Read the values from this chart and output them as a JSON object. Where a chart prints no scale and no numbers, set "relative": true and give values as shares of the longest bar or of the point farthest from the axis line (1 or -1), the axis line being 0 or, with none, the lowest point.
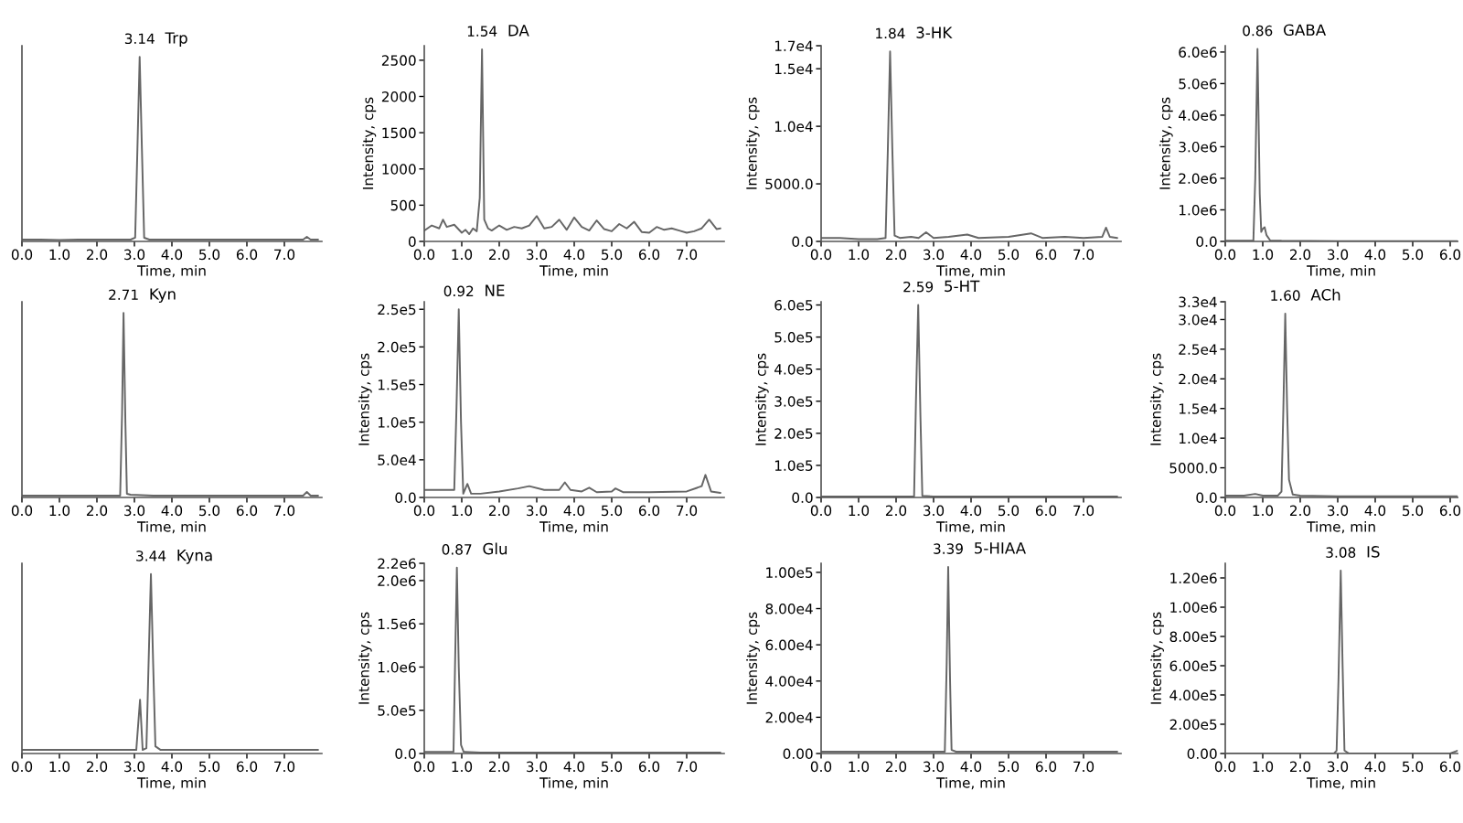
{
  "chart_data": [
    {
      "type": "line",
      "title": "Trp",
      "xlabel": "Time, min",
      "relative": true,
      "tick_labels": "x",
      "xlim": [
        0,
        8
      ],
      "xticks": [
        {
          "value": 0,
          "label": "0.0"
        },
        {
          "value": 1,
          "label": "1.0"
        },
        {
          "value": 2,
          "label": "2.0"
        },
        {
          "value": 3,
          "label": "3.0"
        },
        {
          "value": 4,
          "label": "4.0"
        },
        {
          "value": 5,
          "label": "5.0"
        },
        {
          "value": 6,
          "label": "6.0"
        },
        {
          "value": 7,
          "label": "7.0"
        }
      ],
      "annotations": [
        {
          "text": "3.14",
          "x": 3.14,
          "y": 1
        }
      ],
      "series": [
        {
          "color": "#666666",
          "x": [
            0,
            0.5,
            1,
            1.5,
            2,
            2.5,
            2.9,
            3.02,
            3.08,
            3.14,
            3.2,
            3.26,
            3.4,
            4,
            5,
            6,
            7,
            7.5,
            7.6,
            7.7,
            7.9
          ],
          "values": [
            0.01,
            0.01,
            0.008,
            0.01,
            0.01,
            0.01,
            0.01,
            0.02,
            0.5,
            1,
            0.5,
            0.02,
            0.01,
            0.01,
            0.01,
            0.01,
            0.01,
            0.01,
            0.025,
            0.01,
            0.01
          ]
        }
      ]
    },
    {
      "type": "line",
      "title": "DA",
      "xlabel": "Time, min",
      "ylabel": "Intensity, cps",
      "xlim": [
        0,
        8
      ],
      "ylim": [
        0,
        2700
      ],
      "yticks": [
        0,
        500,
        1000,
        1500,
        2000,
        2500
      ],
      "xticks": [
        {
          "value": 0,
          "label": "0.0"
        },
        {
          "value": 1,
          "label": "1.0"
        },
        {
          "value": 2,
          "label": "2.0"
        },
        {
          "value": 3,
          "label": "3.0"
        },
        {
          "value": 4,
          "label": "4.0"
        },
        {
          "value": 5,
          "label": "5.0"
        },
        {
          "value": 6,
          "label": "6.0"
        },
        {
          "value": 7,
          "label": "7.0"
        }
      ],
      "annotations": [
        {
          "text": "1.54",
          "x": 1.54,
          "y": 2650
        }
      ],
      "series": [
        {
          "color": "#666666",
          "x": [
            0,
            0.2,
            0.4,
            0.5,
            0.6,
            0.8,
            1.0,
            1.1,
            1.2,
            1.3,
            1.4,
            1.48,
            1.54,
            1.6,
            1.7,
            1.8,
            2.0,
            2.2,
            2.4,
            2.6,
            2.8,
            3.0,
            3.2,
            3.4,
            3.6,
            3.8,
            4.0,
            4.2,
            4.4,
            4.6,
            4.8,
            5.0,
            5.2,
            5.4,
            5.6,
            5.8,
            6.0,
            6.2,
            6.4,
            6.6,
            6.8,
            7.0,
            7.2,
            7.4,
            7.6,
            7.8,
            7.9
          ],
          "values": [
            150,
            220,
            180,
            300,
            200,
            230,
            120,
            160,
            100,
            180,
            140,
            600,
            2650,
            300,
            180,
            150,
            220,
            160,
            200,
            180,
            220,
            350,
            180,
            200,
            300,
            160,
            330,
            200,
            150,
            290,
            170,
            140,
            240,
            180,
            270,
            130,
            120,
            200,
            160,
            180,
            150,
            120,
            140,
            180,
            300,
            170,
            180
          ]
        }
      ]
    },
    {
      "type": "line",
      "title": "3-HK",
      "xlabel": "Time, min",
      "ylabel": "Intensity, cps",
      "xlim": [
        0,
        8
      ],
      "ylim": [
        0,
        17000
      ],
      "yticks": [
        {
          "value": 0,
          "label": "0.0"
        },
        {
          "value": 5000,
          "label": "5000.0"
        },
        {
          "value": 10000,
          "label": "1.0e4"
        },
        {
          "value": 15000,
          "label": "1.5e4"
        },
        {
          "value": 17000,
          "label": "1.7e4"
        }
      ],
      "xticks": [
        {
          "value": 0,
          "label": "0.0"
        },
        {
          "value": 1,
          "label": "1.0"
        },
        {
          "value": 2,
          "label": "2.0"
        },
        {
          "value": 3,
          "label": "3.0"
        },
        {
          "value": 4,
          "label": "4.0"
        },
        {
          "value": 5,
          "label": "5.0"
        },
        {
          "value": 6,
          "label": "6.0"
        },
        {
          "value": 7,
          "label": "7.0"
        }
      ],
      "annotations": [
        {
          "text": "1.84",
          "x": 1.84,
          "y": 16500
        }
      ],
      "series": [
        {
          "color": "#666666",
          "x": [
            0,
            0.5,
            1,
            1.5,
            1.72,
            1.78,
            1.84,
            1.9,
            1.96,
            2.1,
            2.4,
            2.6,
            2.8,
            3.0,
            3.4,
            3.9,
            4.2,
            5.0,
            5.6,
            5.9,
            6.5,
            7.0,
            7.5,
            7.6,
            7.7,
            7.9
          ],
          "values": [
            300,
            300,
            200,
            200,
            300,
            8000,
            16500,
            8000,
            500,
            300,
            400,
            300,
            800,
            300,
            400,
            600,
            300,
            400,
            700,
            300,
            400,
            300,
            400,
            1200,
            400,
            300
          ]
        }
      ]
    },
    {
      "type": "line",
      "title": "GABA",
      "xlabel": "Time, min",
      "ylabel": "Intensity, cps",
      "xlim": [
        0,
        6.2
      ],
      "ylim": [
        0,
        6200000
      ],
      "yticks": [
        {
          "value": 0,
          "label": "0.0"
        },
        {
          "value": 1000000,
          "label": "1.0e6"
        },
        {
          "value": 2000000,
          "label": "2.0e6"
        },
        {
          "value": 3000000,
          "label": "3.0e6"
        },
        {
          "value": 4000000,
          "label": "4.0e6"
        },
        {
          "value": 5000000,
          "label": "5.0e6"
        },
        {
          "value": 6000000,
          "label": "6.0e6"
        }
      ],
      "xticks": [
        {
          "value": 0,
          "label": "0.0"
        },
        {
          "value": 1,
          "label": "1.0"
        },
        {
          "value": 2,
          "label": "2.0"
        },
        {
          "value": 3,
          "label": "3.0"
        },
        {
          "value": 4,
          "label": "4.0"
        },
        {
          "value": 5,
          "label": "5.0"
        },
        {
          "value": 6,
          "label": "6.0"
        }
      ],
      "annotations": [
        {
          "text": "0.86",
          "x": 0.86,
          "y": 6100000
        }
      ],
      "series": [
        {
          "color": "#666666",
          "x": [
            0,
            0.5,
            0.75,
            0.8,
            0.86,
            0.92,
            0.96,
            1.0,
            1.05,
            1.1,
            1.2,
            1.5,
            3,
            5,
            6.2
          ],
          "values": [
            20000,
            20000,
            20000,
            2000000,
            6100000,
            1500000,
            300000,
            400000,
            450000,
            200000,
            30000,
            20000,
            10000,
            10000,
            10000
          ]
        }
      ]
    },
    {
      "type": "line",
      "title": "Kyn",
      "xlabel": "Time, min",
      "relative": true,
      "tick_labels": "x",
      "xlim": [
        0,
        8
      ],
      "xticks": [
        {
          "value": 0,
          "label": "0.0"
        },
        {
          "value": 1,
          "label": "1.0"
        },
        {
          "value": 2,
          "label": "2.0"
        },
        {
          "value": 3,
          "label": "3.0"
        },
        {
          "value": 4,
          "label": "4.0"
        },
        {
          "value": 5,
          "label": "5.0"
        },
        {
          "value": 6,
          "label": "6.0"
        },
        {
          "value": 7,
          "label": "7.0"
        }
      ],
      "annotations": [
        {
          "text": "2.71",
          "x": 2.71,
          "y": 1
        }
      ],
      "series": [
        {
          "color": "#666666",
          "x": [
            0,
            0.5,
            1,
            1.5,
            2,
            2.5,
            2.62,
            2.67,
            2.71,
            2.76,
            2.8,
            2.9,
            3.5,
            4,
            5,
            6,
            7,
            7.5,
            7.6,
            7.7,
            7.9
          ],
          "values": [
            0.01,
            0.01,
            0.01,
            0.01,
            0.01,
            0.01,
            0.01,
            0.45,
            1,
            0.4,
            0.02,
            0.015,
            0.01,
            0.01,
            0.01,
            0.01,
            0.01,
            0.01,
            0.03,
            0.01,
            0.01
          ]
        }
      ]
    },
    {
      "type": "line",
      "title": "NE",
      "xlabel": "Time, min",
      "ylabel": "Intensity, cps",
      "xlim": [
        0,
        8
      ],
      "ylim": [
        0,
        260000
      ],
      "yticks": [
        {
          "value": 0,
          "label": "0.0"
        },
        {
          "value": 50000,
          "label": "5.0e4"
        },
        {
          "value": 100000,
          "label": "1.0e5"
        },
        {
          "value": 150000,
          "label": "1.5e5"
        },
        {
          "value": 200000,
          "label": "2.0e5"
        },
        {
          "value": 250000,
          "label": "2.5e5"
        }
      ],
      "xticks": [
        {
          "value": 0,
          "label": "0.0"
        },
        {
          "value": 1,
          "label": "1.0"
        },
        {
          "value": 2,
          "label": "2.0"
        },
        {
          "value": 3,
          "label": "3.0"
        },
        {
          "value": 4,
          "label": "4.0"
        },
        {
          "value": 5,
          "label": "5.0"
        },
        {
          "value": 6,
          "label": "6.0"
        },
        {
          "value": 7,
          "label": "7.0"
        }
      ],
      "annotations": [
        {
          "text": "0.92",
          "x": 0.92,
          "y": 250000
        }
      ],
      "series": [
        {
          "color": "#666666",
          "x": [
            0,
            0.5,
            0.8,
            0.86,
            0.92,
            0.98,
            1.04,
            1.15,
            1.25,
            1.5,
            2.0,
            2.5,
            2.8,
            3.2,
            3.6,
            3.75,
            3.9,
            4.2,
            4.4,
            4.6,
            5.0,
            5.1,
            5.3,
            6.0,
            7.0,
            7.4,
            7.5,
            7.65,
            7.9
          ],
          "values": [
            10000,
            10000,
            10000,
            120000,
            250000,
            100000,
            5000,
            18000,
            5000,
            5000,
            8000,
            12000,
            15000,
            10000,
            10000,
            20000,
            10000,
            8000,
            13000,
            7000,
            8000,
            12000,
            7000,
            7000,
            8000,
            15000,
            30000,
            8000,
            6000
          ]
        }
      ]
    },
    {
      "type": "line",
      "title": "5-HT",
      "xlabel": "Time, min",
      "ylabel": "Intensity, cps",
      "xlim": [
        0,
        8
      ],
      "ylim": [
        0,
        610000
      ],
      "yticks": [
        {
          "value": 0,
          "label": "0.0"
        },
        {
          "value": 100000,
          "label": "1.0e5"
        },
        {
          "value": 200000,
          "label": "2.0e5"
        },
        {
          "value": 300000,
          "label": "3.0e5"
        },
        {
          "value": 400000,
          "label": "4.0e5"
        },
        {
          "value": 500000,
          "label": "5.0e5"
        },
        {
          "value": 600000,
          "label": "6.0e5"
        }
      ],
      "xticks": [
        {
          "value": 0,
          "label": "0.0"
        },
        {
          "value": 1,
          "label": "1.0"
        },
        {
          "value": 2,
          "label": "2.0"
        },
        {
          "value": 3,
          "label": "3.0"
        },
        {
          "value": 4,
          "label": "4.0"
        },
        {
          "value": 5,
          "label": "5.0"
        },
        {
          "value": 6,
          "label": "6.0"
        },
        {
          "value": 7,
          "label": "7.0"
        }
      ],
      "annotations": [
        {
          "text": "2.59",
          "x": 2.59,
          "y": 600000
        }
      ],
      "series": [
        {
          "color": "#666666",
          "x": [
            0,
            1,
            2,
            2.48,
            2.53,
            2.59,
            2.65,
            2.7,
            3,
            4,
            5,
            6,
            7,
            7.9
          ],
          "values": [
            3000,
            3000,
            3000,
            3000,
            300000,
            600000,
            250000,
            5000,
            3000,
            3000,
            3000,
            3000,
            3000,
            3000
          ]
        }
      ]
    },
    {
      "type": "line",
      "title": "ACh",
      "xlabel": "Time, min",
      "ylabel": "Intensity, cps",
      "xlim": [
        0,
        6.2
      ],
      "ylim": [
        0,
        33000
      ],
      "yticks": [
        {
          "value": 0,
          "label": "0.0"
        },
        {
          "value": 5000,
          "label": "5000.0"
        },
        {
          "value": 10000,
          "label": "1.0e4"
        },
        {
          "value": 15000,
          "label": "1.5e4"
        },
        {
          "value": 20000,
          "label": "2.0e4"
        },
        {
          "value": 25000,
          "label": "2.5e4"
        },
        {
          "value": 30000,
          "label": "3.0e4"
        },
        {
          "value": 33000,
          "label": "3.3e4"
        }
      ],
      "xticks": [
        {
          "value": 0,
          "label": "0.0"
        },
        {
          "value": 1,
          "label": "1.0"
        },
        {
          "value": 2,
          "label": "2.0"
        },
        {
          "value": 3,
          "label": "3.0"
        },
        {
          "value": 4,
          "label": "4.0"
        },
        {
          "value": 5,
          "label": "5.0"
        },
        {
          "value": 6,
          "label": "6.0"
        }
      ],
      "annotations": [
        {
          "text": "1.60",
          "x": 1.6,
          "y": 31000
        }
      ],
      "series": [
        {
          "color": "#666666",
          "x": [
            0,
            0.5,
            0.8,
            1.0,
            1.4,
            1.5,
            1.55,
            1.6,
            1.65,
            1.7,
            1.8,
            2,
            3,
            4,
            5,
            6.2
          ],
          "values": [
            300,
            300,
            600,
            300,
            300,
            1000,
            15000,
            31000,
            15000,
            3000,
            500,
            300,
            200,
            200,
            200,
            200
          ]
        }
      ]
    },
    {
      "type": "line",
      "title": "Kyna",
      "xlabel": "Time, min",
      "relative": true,
      "tick_labels": "x",
      "xlim": [
        0,
        8
      ],
      "xticks": [
        {
          "value": 0,
          "label": "0.0"
        },
        {
          "value": 1,
          "label": "1.0"
        },
        {
          "value": 2,
          "label": "2.0"
        },
        {
          "value": 3,
          "label": "3.0"
        },
        {
          "value": 4,
          "label": "4.0"
        },
        {
          "value": 5,
          "label": "5.0"
        },
        {
          "value": 6,
          "label": "6.0"
        },
        {
          "value": 7,
          "label": "7.0"
        }
      ],
      "annotations": [
        {
          "text": "3.44",
          "x": 3.44,
          "y": 1
        }
      ],
      "series": [
        {
          "color": "#666666",
          "x": [
            0,
            0.5,
            1,
            2,
            3,
            3.05,
            3.15,
            3.22,
            3.32,
            3.39,
            3.44,
            3.5,
            3.56,
            3.7,
            4,
            5,
            6,
            7,
            7.9
          ],
          "values": [
            0.02,
            0.02,
            0.02,
            0.02,
            0.02,
            0.02,
            0.3,
            0.02,
            0.03,
            0.6,
            1,
            0.5,
            0.04,
            0.02,
            0.02,
            0.02,
            0.02,
            0.02,
            0.02
          ]
        }
      ]
    },
    {
      "type": "line",
      "title": "Glu",
      "xlabel": "Time, min",
      "ylabel": "Intensity, cps",
      "xlim": [
        0,
        8
      ],
      "ylim": [
        0,
        2200000
      ],
      "yticks": [
        {
          "value": 0,
          "label": "0.0"
        },
        {
          "value": 500000,
          "label": "5.0e5"
        },
        {
          "value": 1000000,
          "label": "1.0e6"
        },
        {
          "value": 1500000,
          "label": "1.5e6"
        },
        {
          "value": 2000000,
          "label": "2.0e6"
        },
        {
          "value": 2200000,
          "label": "2.2e6"
        }
      ],
      "xticks": [
        {
          "value": 0,
          "label": "0.0"
        },
        {
          "value": 1,
          "label": "1.0"
        },
        {
          "value": 2,
          "label": "2.0"
        },
        {
          "value": 3,
          "label": "3.0"
        },
        {
          "value": 4,
          "label": "4.0"
        },
        {
          "value": 5,
          "label": "5.0"
        },
        {
          "value": 6,
          "label": "6.0"
        },
        {
          "value": 7,
          "label": "7.0"
        }
      ],
      "annotations": [
        {
          "text": "0.87",
          "x": 0.87,
          "y": 2150000
        }
      ],
      "series": [
        {
          "color": "#666666",
          "x": [
            0,
            0.5,
            0.78,
            0.82,
            0.87,
            0.92,
            0.98,
            1.05,
            1.5,
            3,
            5,
            7,
            7.9
          ],
          "values": [
            20000,
            20000,
            20000,
            1000000,
            2150000,
            1000000,
            100000,
            20000,
            10000,
            10000,
            10000,
            10000,
            10000
          ]
        }
      ]
    },
    {
      "type": "line",
      "title": "5-HIAA",
      "xlabel": "Time, min",
      "ylabel": "Intensity, cps",
      "xlim": [
        0,
        8
      ],
      "ylim": [
        0,
        105000
      ],
      "yticks": [
        {
          "value": 0,
          "label": "0.00"
        },
        {
          "value": 20000,
          "label": "2.00e4"
        },
        {
          "value": 40000,
          "label": "4.00e4"
        },
        {
          "value": 60000,
          "label": "6.00e4"
        },
        {
          "value": 80000,
          "label": "8.00e4"
        },
        {
          "value": 100000,
          "label": "1.00e5"
        }
      ],
      "xticks": [
        {
          "value": 0,
          "label": "0.0"
        },
        {
          "value": 1,
          "label": "1.0"
        },
        {
          "value": 2,
          "label": "2.0"
        },
        {
          "value": 3,
          "label": "3.0"
        },
        {
          "value": 4,
          "label": "4.0"
        },
        {
          "value": 5,
          "label": "5.0"
        },
        {
          "value": 6,
          "label": "6.0"
        },
        {
          "value": 7,
          "label": "7.0"
        }
      ],
      "annotations": [
        {
          "text": "3.39",
          "x": 3.39,
          "y": 103000
        }
      ],
      "series": [
        {
          "color": "#666666",
          "x": [
            0,
            1,
            2,
            3,
            3.3,
            3.35,
            3.39,
            3.44,
            3.48,
            3.6,
            4,
            5,
            6,
            7,
            7.9
          ],
          "values": [
            1000,
            1000,
            1000,
            1000,
            1000,
            50000,
            103000,
            40000,
            2000,
            1000,
            1000,
            1000,
            1000,
            1000,
            1000
          ]
        }
      ]
    },
    {
      "type": "line",
      "title": "IS",
      "xlabel": "Time, min",
      "ylabel": "Intensity, cps",
      "xlim": [
        0,
        6.2
      ],
      "ylim": [
        0,
        1300000
      ],
      "yticks": [
        {
          "value": 0,
          "label": "0.00"
        },
        {
          "value": 200000,
          "label": "2.00e5"
        },
        {
          "value": 400000,
          "label": "4.00e5"
        },
        {
          "value": 600000,
          "label": "6.00e5"
        },
        {
          "value": 800000,
          "label": "8.00e5"
        },
        {
          "value": 1000000,
          "label": "1.00e6"
        },
        {
          "value": 1200000,
          "label": "1.20e6"
        }
      ],
      "xticks": [
        {
          "value": 0,
          "label": "0.0"
        },
        {
          "value": 1,
          "label": "1.0"
        },
        {
          "value": 2,
          "label": "2.0"
        },
        {
          "value": 3,
          "label": "3.0"
        },
        {
          "value": 4,
          "label": "4.0"
        },
        {
          "value": 5,
          "label": "5.0"
        },
        {
          "value": 6,
          "label": "6.0"
        }
      ],
      "annotations": [
        {
          "text": "3.08",
          "x": 3.08,
          "y": 1250000
        }
      ],
      "series": [
        {
          "color": "#666666",
          "x": [
            0,
            1,
            2,
            2.9,
            2.97,
            3.02,
            3.08,
            3.13,
            3.18,
            3.3,
            4,
            5,
            6,
            6.2
          ],
          "values": [
            0,
            0,
            0,
            0,
            20000,
            500000,
            1250000,
            600000,
            20000,
            0,
            0,
            0,
            0,
            20000
          ]
        }
      ]
    }
  ]
}
